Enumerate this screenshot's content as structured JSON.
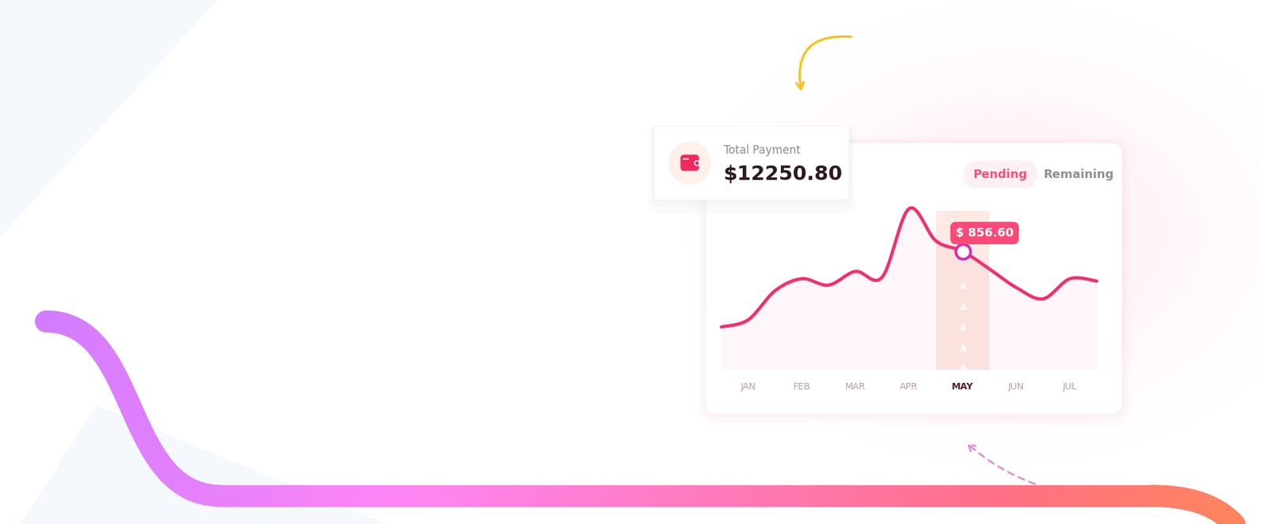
{
  "header": {
    "label": "Total Payment",
    "value": "$12250.80"
  },
  "tabs": {
    "items": [
      "Pending",
      "Remaining"
    ],
    "active": "Pending"
  },
  "chart_data": {
    "type": "line",
    "categories": [
      null,
      "JAN",
      null,
      "FEB",
      null,
      "MAR",
      null,
      "APR",
      null,
      "MAY",
      null,
      "JUN",
      null,
      "JUL",
      null
    ],
    "values": [
      309,
      361,
      571,
      658,
      612,
      711,
      670,
      1165,
      932,
      856.6,
      728,
      594,
      513,
      658,
      641
    ],
    "color": "#f2306e",
    "ylim": [
      0,
      1250
    ],
    "tick_labels": "x",
    "grid": false,
    "annotations": [
      {
        "category": "MAY",
        "text": "$ 856.60"
      }
    ]
  }
}
